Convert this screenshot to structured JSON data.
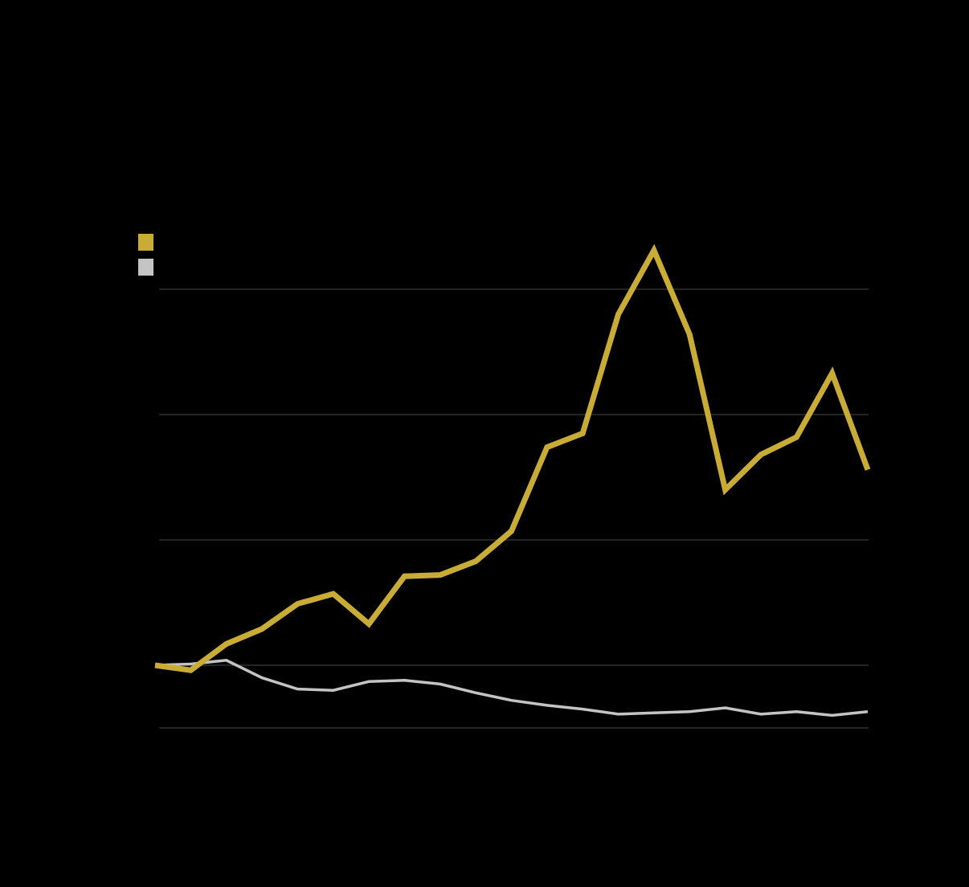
{
  "chart_data": {
    "type": "line",
    "categories": [
      null,
      null,
      null,
      null,
      null,
      null,
      null,
      null,
      null,
      null,
      null,
      null,
      null,
      null,
      null,
      null,
      null,
      null,
      null,
      null,
      null
    ],
    "series": [
      {
        "color": "#c9ac35",
        "values": [
          100,
          96,
          117,
          129,
          149,
          157,
          133,
          171,
          172,
          183,
          207,
          274,
          285,
          380,
          431,
          364,
          240,
          268,
          282,
          333,
          256
        ]
      },
      {
        "color": "#c4c4c4",
        "values": [
          100,
          101,
          104,
          90,
          81,
          80,
          87,
          88,
          85,
          78,
          72,
          68,
          65,
          61,
          62,
          63,
          66,
          61,
          63,
          60,
          63
        ]
      }
    ],
    "ylim": [
      50,
      450
    ],
    "yticks": [
      50,
      100,
      200,
      300,
      400
    ],
    "grid": true
  }
}
